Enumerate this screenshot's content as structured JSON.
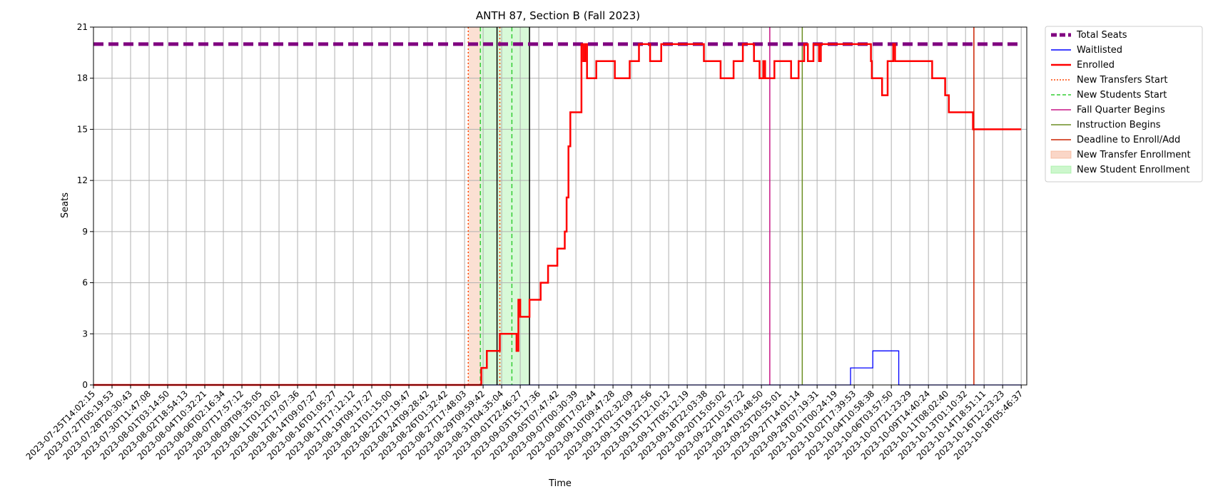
{
  "chart_data": {
    "type": "line",
    "title": "ANTH 87, Section B (Fall 2023)",
    "xlabel": "Time",
    "ylabel": "Seats",
    "ylim": [
      0,
      21
    ],
    "yticks": [
      0,
      3,
      6,
      9,
      12,
      15,
      18,
      21
    ],
    "grid": true,
    "legend_position": "outside-top-right",
    "x_tick_labels": [
      "2023-07-25T14:02:15",
      "2023-07-27T05:19:53",
      "2023-07-28T20:30:43",
      "2023-07-30T11:47:08",
      "2023-08-01T03:14:50",
      "2023-08-02T18:54:13",
      "2023-08-04T10:32:21",
      "2023-08-06T02:16:34",
      "2023-08-07T17:57:12",
      "2023-08-09T09:35:05",
      "2023-08-11T01:20:02",
      "2023-08-12T17:07:36",
      "2023-08-14T09:07:27",
      "2023-08-16T01:05:27",
      "2023-08-17T17:12:12",
      "2023-08-19T09:17:27",
      "2023-08-21T01:15:00",
      "2023-08-22T17:19:47",
      "2023-08-24T09:28:42",
      "2023-08-26T01:32:42",
      "2023-08-27T17:48:03",
      "2023-08-29T09:59:42",
      "2023-08-31T04:35:04",
      "2023-09-01T22:46:27",
      "2023-09-03T15:17:36",
      "2023-09-05T07:47:42",
      "2023-09-07T00:30:39",
      "2023-09-08T17:02:44",
      "2023-09-10T09:47:28",
      "2023-09-12T02:32:09",
      "2023-09-13T19:22:56",
      "2023-09-15T12:10:12",
      "2023-09-17T05:12:19",
      "2023-09-18T22:03:38",
      "2023-09-20T15:05:02",
      "2023-09-22T10:57:22",
      "2023-09-24T03:48:50",
      "2023-09-25T20:55:01",
      "2023-09-27T14:01:14",
      "2023-09-29T07:19:31",
      "2023-10-01T00:24:19",
      "2023-10-02T17:39:53",
      "2023-10-04T10:58:38",
      "2023-10-06T03:57:50",
      "2023-10-07T21:23:29",
      "2023-10-09T14:40:24",
      "2023-10-11T08:02:40",
      "2023-10-13T01:10:32",
      "2023-10-14T18:51:11",
      "2023-10-16T12:23:23",
      "2023-10-18T05:46:37"
    ],
    "series": [
      {
        "name": "Total Seats",
        "color": "#800080",
        "style": "dashed-thick",
        "points": [
          [
            0,
            20
          ],
          [
            50,
            20
          ]
        ]
      },
      {
        "name": "Waitlisted",
        "color": "#0000ff",
        "style": "step",
        "points": [
          [
            0,
            0
          ],
          [
            40.8,
            0
          ],
          [
            40.8,
            1
          ],
          [
            42.0,
            1
          ],
          [
            42.0,
            2
          ],
          [
            43.4,
            2
          ],
          [
            43.4,
            0
          ],
          [
            50,
            0
          ]
        ]
      },
      {
        "name": "Enrolled",
        "color": "#ff0000",
        "style": "step",
        "points": [
          [
            0,
            0
          ],
          [
            20.9,
            0
          ],
          [
            20.9,
            1
          ],
          [
            21.2,
            1
          ],
          [
            21.2,
            2
          ],
          [
            21.9,
            2
          ],
          [
            21.9,
            3
          ],
          [
            22.8,
            3
          ],
          [
            22.8,
            2
          ],
          [
            22.9,
            2
          ],
          [
            22.9,
            5
          ],
          [
            23.0,
            5
          ],
          [
            23.0,
            4
          ],
          [
            23.5,
            4
          ],
          [
            23.5,
            5
          ],
          [
            24.1,
            5
          ],
          [
            24.1,
            6
          ],
          [
            24.5,
            6
          ],
          [
            24.5,
            7
          ],
          [
            25.0,
            7
          ],
          [
            25.0,
            8
          ],
          [
            25.4,
            8
          ],
          [
            25.4,
            9
          ],
          [
            25.5,
            9
          ],
          [
            25.5,
            11
          ],
          [
            25.6,
            11
          ],
          [
            25.6,
            14
          ],
          [
            25.7,
            14
          ],
          [
            25.7,
            16
          ],
          [
            26.3,
            16
          ],
          [
            26.3,
            20
          ],
          [
            26.4,
            20
          ],
          [
            26.4,
            19
          ],
          [
            26.5,
            19
          ],
          [
            26.5,
            20
          ],
          [
            26.6,
            20
          ],
          [
            26.6,
            18
          ],
          [
            27.1,
            18
          ],
          [
            27.1,
            19
          ],
          [
            28.1,
            19
          ],
          [
            28.1,
            18
          ],
          [
            28.9,
            18
          ],
          [
            28.9,
            19
          ],
          [
            29.4,
            19
          ],
          [
            29.4,
            20
          ],
          [
            30.0,
            20
          ],
          [
            30.0,
            19
          ],
          [
            30.6,
            19
          ],
          [
            30.6,
            20
          ],
          [
            32.9,
            20
          ],
          [
            32.9,
            19
          ],
          [
            33.8,
            19
          ],
          [
            33.8,
            18
          ],
          [
            34.5,
            18
          ],
          [
            34.5,
            19
          ],
          [
            35.0,
            19
          ],
          [
            35.0,
            20
          ],
          [
            35.6,
            20
          ],
          [
            35.6,
            19
          ],
          [
            35.9,
            19
          ],
          [
            35.9,
            18
          ],
          [
            36.1,
            18
          ],
          [
            36.1,
            19
          ],
          [
            36.2,
            19
          ],
          [
            36.2,
            18
          ],
          [
            36.7,
            18
          ],
          [
            36.7,
            19
          ],
          [
            37.6,
            19
          ],
          [
            37.6,
            18
          ],
          [
            38.0,
            18
          ],
          [
            38.0,
            19
          ],
          [
            38.3,
            19
          ],
          [
            38.3,
            20
          ],
          [
            38.5,
            20
          ],
          [
            38.5,
            19
          ],
          [
            38.8,
            19
          ],
          [
            38.8,
            20
          ],
          [
            39.1,
            20
          ],
          [
            39.1,
            19
          ],
          [
            39.2,
            19
          ],
          [
            39.2,
            20
          ],
          [
            41.9,
            20
          ],
          [
            41.9,
            19
          ],
          [
            41.95,
            19
          ],
          [
            41.95,
            18
          ],
          [
            42.5,
            18
          ],
          [
            42.5,
            17
          ],
          [
            42.8,
            17
          ],
          [
            42.8,
            19
          ],
          [
            43.1,
            19
          ],
          [
            43.1,
            20
          ],
          [
            43.2,
            20
          ],
          [
            43.2,
            19
          ],
          [
            45.2,
            19
          ],
          [
            45.2,
            18
          ],
          [
            45.9,
            18
          ],
          [
            45.9,
            17
          ],
          [
            46.1,
            17
          ],
          [
            46.1,
            16
          ],
          [
            47.4,
            16
          ],
          [
            47.4,
            15
          ],
          [
            50,
            15
          ]
        ]
      }
    ],
    "vertical_lines": [
      {
        "name": "New Transfers Start",
        "color": "#ff4500",
        "style": "dotted",
        "x": [
          20.2,
          21.9
        ]
      },
      {
        "name": "New Students Start",
        "color": "#32cd32",
        "style": "dashed",
        "x": [
          20.85,
          22.55
        ]
      },
      {
        "name": "Fall Quarter Begins",
        "color": "#c71585",
        "style": "solid",
        "x": [
          36.45
        ]
      },
      {
        "name": "Instruction Begins",
        "color": "#6b8e23",
        "style": "solid",
        "x": [
          38.2
        ]
      },
      {
        "name": "Deadline to Enroll/Add",
        "color": "#cc2200",
        "style": "solid",
        "x": [
          47.45
        ]
      },
      {
        "name": "",
        "color": "#000000",
        "style": "solid",
        "x": [
          21.75,
          23.5
        ]
      }
    ],
    "shaded_regions": [
      {
        "name": "New Transfer Enrollment",
        "color": "#f4a582",
        "alpha": 0.35,
        "x": [
          20.2,
          20.85
        ]
      },
      {
        "name": "New Student Enrollment",
        "color": "#90ee90",
        "alpha": 0.35,
        "x": [
          20.85,
          23.5
        ]
      }
    ],
    "legend_entries": [
      {
        "label": "Total Seats",
        "color": "#800080",
        "kind": "dashed-thick"
      },
      {
        "label": "Waitlisted",
        "color": "#0000ff",
        "kind": "line"
      },
      {
        "label": "Enrolled",
        "color": "#ff0000",
        "kind": "line-thick"
      },
      {
        "label": "New Transfers Start",
        "color": "#ff4500",
        "kind": "dotted"
      },
      {
        "label": "New Students Start",
        "color": "#32cd32",
        "kind": "dashed"
      },
      {
        "label": "Fall Quarter Begins",
        "color": "#c71585",
        "kind": "line"
      },
      {
        "label": "Instruction Begins",
        "color": "#6b8e23",
        "kind": "line"
      },
      {
        "label": "Deadline to Enroll/Add",
        "color": "#cc2200",
        "kind": "line"
      },
      {
        "label": "New Transfer Enrollment",
        "color": "#f4a582",
        "kind": "patch"
      },
      {
        "label": "New Student Enrollment",
        "color": "#90ee90",
        "kind": "patch"
      }
    ]
  }
}
